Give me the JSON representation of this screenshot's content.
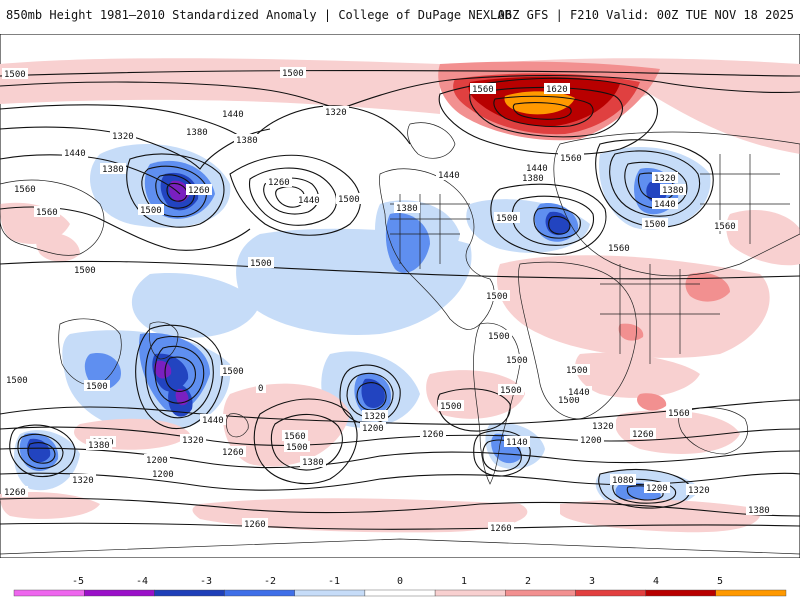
{
  "header": {
    "title_left": "850mb Height 1981–2010 Standardized Anomaly | College of DuPage NEXLAB",
    "title_right": "06Z GFS | F210 Valid: 00Z TUE NOV 18 2025"
  },
  "contour_labels": [
    "1500",
    "1500",
    "1440",
    "1320",
    "1380",
    "1320",
    "1380",
    "1440",
    "1380",
    "1260",
    "1560",
    "1500",
    "1500",
    "1260",
    "1560",
    "1440",
    "1500",
    "1380",
    "1500",
    "1560",
    "1620",
    "1560",
    "1440",
    "1380",
    "1500",
    "1440",
    "1320",
    "1380",
    "1440",
    "1500",
    "1560",
    "1560",
    "1500",
    "1500",
    "1500",
    "1500",
    "1500",
    "1440",
    "1320",
    "1380",
    "1320",
    "1200",
    "1260",
    "1200",
    "1260",
    "1380",
    "1500",
    "1560",
    "1200",
    "1260",
    "1380",
    "1140",
    "1200",
    "1260",
    "1320",
    "1080",
    "1200",
    "1320",
    "1380",
    "1380",
    "1260",
    "1320",
    "1260",
    "0",
    "1500",
    "1500",
    "1500",
    "1560",
    "1440",
    "1500",
    "1500"
  ],
  "legend": {
    "ticks": [
      "-5",
      "-4",
      "-3",
      "-2",
      "-1",
      "0",
      "1",
      "2",
      "3",
      "4",
      "5"
    ],
    "colors": [
      "#ee66ee",
      "#9a10c8",
      "#1f3fb8",
      "#3f6fe8",
      "#c6dcf8",
      "#ffffff",
      "#f8d0d0",
      "#f29090",
      "#e24040",
      "#b80000",
      "#ff9900"
    ]
  },
  "colors": {
    "neg1": "#c6dcf8",
    "neg2": "#5f8ff0",
    "neg3": "#2244c0",
    "neg4": "#7a20c0",
    "pos1": "#f8d0d0",
    "pos2": "#f29090",
    "pos3": "#e04040",
    "pos4": "#b80000",
    "pos5": "#ff9900"
  }
}
